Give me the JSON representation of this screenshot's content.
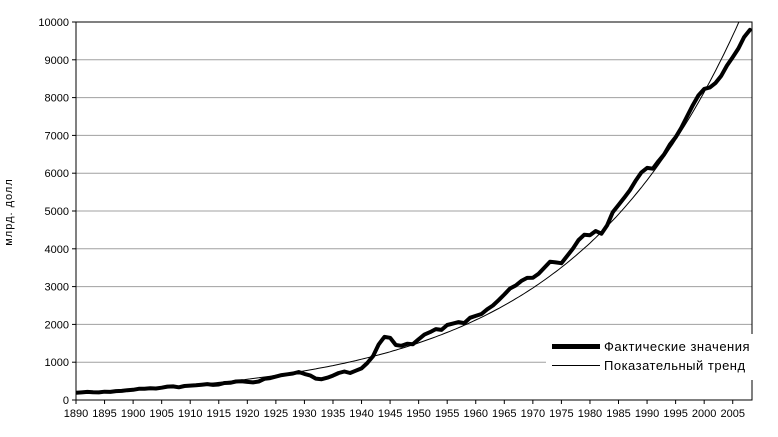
{
  "colors": {
    "background": "#ffffff",
    "grid": "#a0a0a0",
    "axis": "#000000",
    "line": "#000000",
    "text": "#000000"
  },
  "chart_data": {
    "type": "line",
    "title": "",
    "xlabel": "",
    "ylabel": "млрд. долл",
    "grid": "horizontal-only",
    "legend_position": "inside-bottom-right",
    "x_axis": {
      "min": 1890,
      "max": 2008,
      "tick_step": 5,
      "tick_labels": [
        "1890",
        "1895",
        "1900",
        "1905",
        "1910",
        "1915",
        "1920",
        "1925",
        "1930",
        "1935",
        "1940",
        "1945",
        "1950",
        "1955",
        "1960",
        "1965",
        "1970",
        "1975",
        "1980",
        "1985",
        "1990",
        "1995",
        "2000",
        "2005"
      ]
    },
    "y_axis": {
      "min": 0,
      "max": 10000,
      "tick_step": 1000,
      "tick_labels": [
        "0",
        "1000",
        "2000",
        "3000",
        "4000",
        "5000",
        "6000",
        "7000",
        "8000",
        "9000",
        "10000"
      ]
    },
    "series": [
      {
        "name": "Фактические значения",
        "style": "thick",
        "stroke_width": 4,
        "color": "#000000",
        "start_year": 1890,
        "values": [
          190,
          200,
          215,
          205,
          200,
          220,
          215,
          235,
          240,
          260,
          270,
          295,
          300,
          310,
          305,
          325,
          355,
          360,
          335,
          370,
          380,
          390,
          405,
          420,
          400,
          410,
          450,
          455,
          490,
          495,
          480,
          465,
          490,
          560,
          580,
          620,
          660,
          680,
          700,
          740,
          690,
          650,
          565,
          550,
          590,
          645,
          715,
          755,
          715,
          775,
          835,
          975,
          1160,
          1470,
          1670,
          1645,
          1455,
          1435,
          1490,
          1475,
          1605,
          1730,
          1795,
          1875,
          1855,
          1985,
          2020,
          2060,
          2035,
          2175,
          2225,
          2275,
          2400,
          2500,
          2640,
          2790,
          2950,
          3030,
          3150,
          3230,
          3235,
          3340,
          3500,
          3660,
          3640,
          3620,
          3810,
          4000,
          4230,
          4370,
          4360,
          4470,
          4400,
          4620,
          4970,
          5160,
          5350,
          5550,
          5800,
          6020,
          6140,
          6120,
          6320,
          6500,
          6760,
          6950,
          7200,
          7500,
          7800,
          8060,
          8230,
          8270,
          8390,
          8580,
          8850,
          9070,
          9300,
          9600,
          9790
        ]
      },
      {
        "name": "Показательный тренд",
        "style": "thin",
        "stroke_width": 1,
        "color": "#000000",
        "model": "exponential",
        "formula": "y = 200·e^(0.0337·(t−1890))",
        "base_year": 1890,
        "base_value": 200,
        "growth_rate": 0.0337,
        "end_year": 2008
      }
    ]
  }
}
